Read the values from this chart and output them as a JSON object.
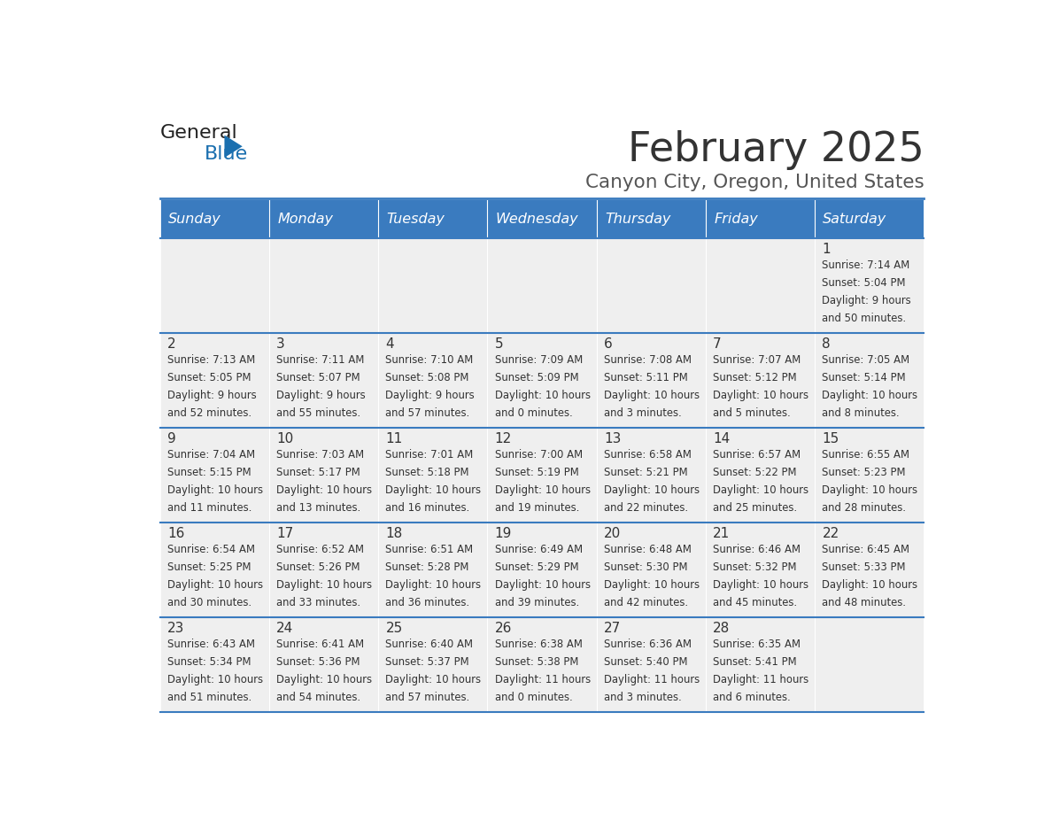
{
  "title": "February 2025",
  "subtitle": "Canyon City, Oregon, United States",
  "days_of_week": [
    "Sunday",
    "Monday",
    "Tuesday",
    "Wednesday",
    "Thursday",
    "Friday",
    "Saturday"
  ],
  "header_bg": "#3a7bbf",
  "header_text": "#ffffff",
  "cell_bg_light": "#efefef",
  "text_color": "#333333",
  "border_color": "#3a7bbf",
  "title_color": "#333333",
  "subtitle_color": "#555555",
  "logo_general_color": "#222222",
  "logo_blue_color": "#1a6faf",
  "calendar_data": [
    [
      null,
      null,
      null,
      null,
      null,
      null,
      {
        "day": "1",
        "sunrise": "7:14 AM",
        "sunset": "5:04 PM",
        "daylight_h": "9 hours",
        "daylight_m": "and 50 minutes."
      }
    ],
    [
      {
        "day": "2",
        "sunrise": "7:13 AM",
        "sunset": "5:05 PM",
        "daylight_h": "9 hours",
        "daylight_m": "and 52 minutes."
      },
      {
        "day": "3",
        "sunrise": "7:11 AM",
        "sunset": "5:07 PM",
        "daylight_h": "9 hours",
        "daylight_m": "and 55 minutes."
      },
      {
        "day": "4",
        "sunrise": "7:10 AM",
        "sunset": "5:08 PM",
        "daylight_h": "9 hours",
        "daylight_m": "and 57 minutes."
      },
      {
        "day": "5",
        "sunrise": "7:09 AM",
        "sunset": "5:09 PM",
        "daylight_h": "10 hours",
        "daylight_m": "and 0 minutes."
      },
      {
        "day": "6",
        "sunrise": "7:08 AM",
        "sunset": "5:11 PM",
        "daylight_h": "10 hours",
        "daylight_m": "and 3 minutes."
      },
      {
        "day": "7",
        "sunrise": "7:07 AM",
        "sunset": "5:12 PM",
        "daylight_h": "10 hours",
        "daylight_m": "and 5 minutes."
      },
      {
        "day": "8",
        "sunrise": "7:05 AM",
        "sunset": "5:14 PM",
        "daylight_h": "10 hours",
        "daylight_m": "and 8 minutes."
      }
    ],
    [
      {
        "day": "9",
        "sunrise": "7:04 AM",
        "sunset": "5:15 PM",
        "daylight_h": "10 hours",
        "daylight_m": "and 11 minutes."
      },
      {
        "day": "10",
        "sunrise": "7:03 AM",
        "sunset": "5:17 PM",
        "daylight_h": "10 hours",
        "daylight_m": "and 13 minutes."
      },
      {
        "day": "11",
        "sunrise": "7:01 AM",
        "sunset": "5:18 PM",
        "daylight_h": "10 hours",
        "daylight_m": "and 16 minutes."
      },
      {
        "day": "12",
        "sunrise": "7:00 AM",
        "sunset": "5:19 PM",
        "daylight_h": "10 hours",
        "daylight_m": "and 19 minutes."
      },
      {
        "day": "13",
        "sunrise": "6:58 AM",
        "sunset": "5:21 PM",
        "daylight_h": "10 hours",
        "daylight_m": "and 22 minutes."
      },
      {
        "day": "14",
        "sunrise": "6:57 AM",
        "sunset": "5:22 PM",
        "daylight_h": "10 hours",
        "daylight_m": "and 25 minutes."
      },
      {
        "day": "15",
        "sunrise": "6:55 AM",
        "sunset": "5:23 PM",
        "daylight_h": "10 hours",
        "daylight_m": "and 28 minutes."
      }
    ],
    [
      {
        "day": "16",
        "sunrise": "6:54 AM",
        "sunset": "5:25 PM",
        "daylight_h": "10 hours",
        "daylight_m": "and 30 minutes."
      },
      {
        "day": "17",
        "sunrise": "6:52 AM",
        "sunset": "5:26 PM",
        "daylight_h": "10 hours",
        "daylight_m": "and 33 minutes."
      },
      {
        "day": "18",
        "sunrise": "6:51 AM",
        "sunset": "5:28 PM",
        "daylight_h": "10 hours",
        "daylight_m": "and 36 minutes."
      },
      {
        "day": "19",
        "sunrise": "6:49 AM",
        "sunset": "5:29 PM",
        "daylight_h": "10 hours",
        "daylight_m": "and 39 minutes."
      },
      {
        "day": "20",
        "sunrise": "6:48 AM",
        "sunset": "5:30 PM",
        "daylight_h": "10 hours",
        "daylight_m": "and 42 minutes."
      },
      {
        "day": "21",
        "sunrise": "6:46 AM",
        "sunset": "5:32 PM",
        "daylight_h": "10 hours",
        "daylight_m": "and 45 minutes."
      },
      {
        "day": "22",
        "sunrise": "6:45 AM",
        "sunset": "5:33 PM",
        "daylight_h": "10 hours",
        "daylight_m": "and 48 minutes."
      }
    ],
    [
      {
        "day": "23",
        "sunrise": "6:43 AM",
        "sunset": "5:34 PM",
        "daylight_h": "10 hours",
        "daylight_m": "and 51 minutes."
      },
      {
        "day": "24",
        "sunrise": "6:41 AM",
        "sunset": "5:36 PM",
        "daylight_h": "10 hours",
        "daylight_m": "and 54 minutes."
      },
      {
        "day": "25",
        "sunrise": "6:40 AM",
        "sunset": "5:37 PM",
        "daylight_h": "10 hours",
        "daylight_m": "and 57 minutes."
      },
      {
        "day": "26",
        "sunrise": "6:38 AM",
        "sunset": "5:38 PM",
        "daylight_h": "11 hours",
        "daylight_m": "and 0 minutes."
      },
      {
        "day": "27",
        "sunrise": "6:36 AM",
        "sunset": "5:40 PM",
        "daylight_h": "11 hours",
        "daylight_m": "and 3 minutes."
      },
      {
        "day": "28",
        "sunrise": "6:35 AM",
        "sunset": "5:41 PM",
        "daylight_h": "11 hours",
        "daylight_m": "and 6 minutes."
      },
      null
    ]
  ]
}
